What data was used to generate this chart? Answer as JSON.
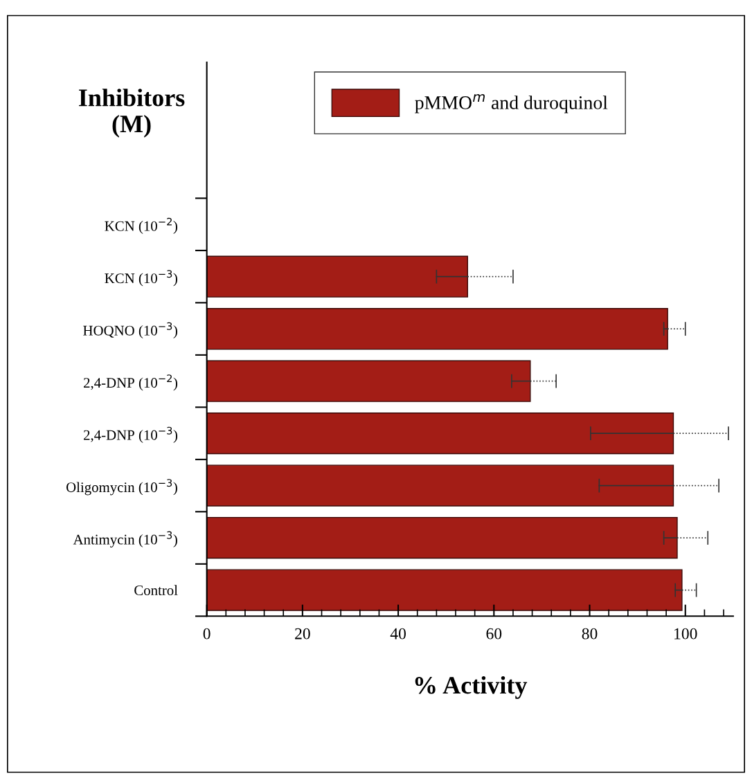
{
  "chart_data": {
    "type": "bar",
    "orientation": "horizontal",
    "ylabel": "Inhibitors\n(M)",
    "xlabel": "% Activity",
    "categories": [
      "KCN (10$^{−2}$)",
      "KCN (10$^{−3}$)",
      "HOQNO (10$^{−3}$)",
      "2,4-DNP (10$^{−2}$)",
      "2,4-DNP (10$^{−3}$)",
      "Oligomycin (10$^{−3}$)",
      "Antimycin (10$^{−3}$)",
      "Control"
    ],
    "series": [
      {
        "name": "pMMO$^{m}$ and duroquinol",
        "color": "#a31d16",
        "values": [
          null,
          54.5,
          96.3,
          67.6,
          97.5,
          97.5,
          98.3,
          99.3
        ],
        "errors": [
          null,
          [
            48,
            64
          ],
          [
            95.5,
            100
          ],
          [
            63.7,
            73
          ],
          [
            80.2,
            109
          ],
          [
            82,
            107
          ],
          [
            95.5,
            104.7
          ],
          [
            97.9,
            102.3
          ]
        ]
      }
    ],
    "xlim": [
      0,
      110
    ],
    "xticks": [
      0,
      20,
      40,
      60,
      80,
      100
    ],
    "grid": false,
    "legend": "top"
  }
}
